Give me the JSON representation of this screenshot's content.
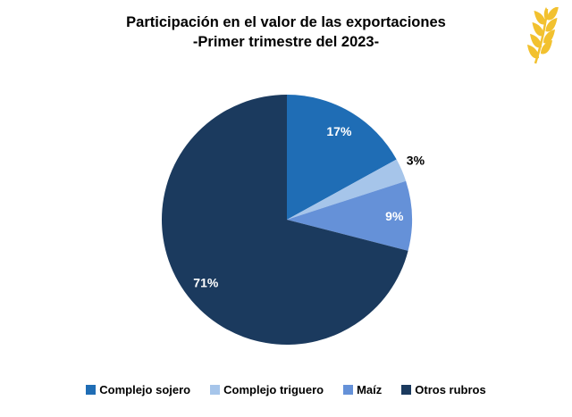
{
  "title": {
    "line1": "Participación en el valor de las exportaciones",
    "line2": "-Primer trimestre del 2023-"
  },
  "logo": {
    "icon": "wheat-icon",
    "color": "#F2C12F"
  },
  "chart_data": {
    "type": "pie",
    "title": "Participación en el valor de las exportaciones -Primer trimestre del 2023-",
    "start_angle_deg": 0,
    "direction": "clockwise",
    "legend_position": "bottom",
    "value_suffix": "%",
    "series": [
      {
        "label": "Complejo sojero",
        "value": 17,
        "color": "#1F6DB5",
        "label_color": "#FFFFFF",
        "label_r": 0.82
      },
      {
        "label": "Complejo triguero",
        "value": 3,
        "color": "#A6C5EA",
        "label_color": "#000000",
        "label_r": 1.12,
        "label_dy": -4
      },
      {
        "label": "Maíz",
        "value": 9,
        "color": "#6591D8",
        "label_color": "#FFFFFF",
        "label_r": 0.86
      },
      {
        "label": "Otros rubros",
        "value": 71,
        "color": "#1B3A5E",
        "label_color": "#FFFFFF",
        "label_r": 0.82
      }
    ]
  }
}
